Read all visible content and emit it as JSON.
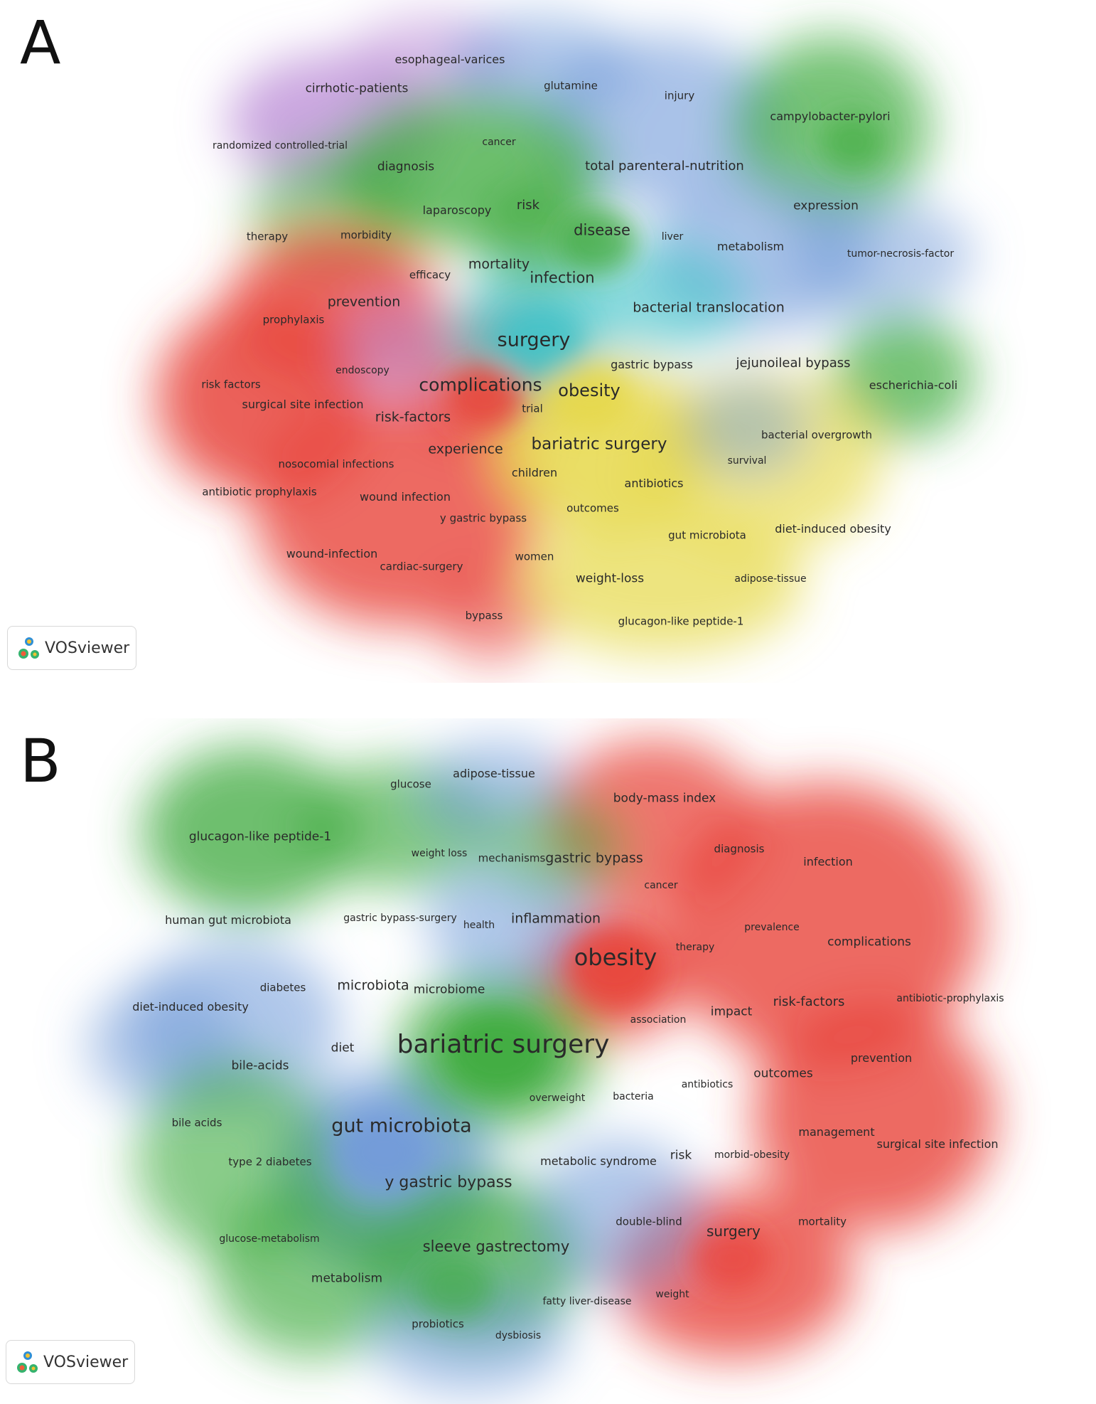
{
  "panels": [
    {
      "label": "A",
      "badge_text": "VOSviewer",
      "clusters": [
        {
          "color": "#e8453c",
          "name": ""
        },
        {
          "color": "#3daa3d",
          "name": ""
        },
        {
          "color": "#6f99d8",
          "name": ""
        },
        {
          "color": "#e6d84a",
          "name": ""
        },
        {
          "color": "#b98ad6",
          "name": ""
        },
        {
          "color": "#3fc3c8",
          "name": ""
        }
      ],
      "terms": [
        {
          "label": "esophageal-varices",
          "cluster": 4
        },
        {
          "label": "glutamine",
          "cluster": 2
        },
        {
          "label": "cirrhotic-patients",
          "cluster": 4
        },
        {
          "label": "injury",
          "cluster": 2
        },
        {
          "label": "campylobacter-pylori",
          "cluster": 1
        },
        {
          "label": "randomized controlled-trial",
          "cluster": 4
        },
        {
          "label": "cancer",
          "cluster": 1
        },
        {
          "label": "diagnosis",
          "cluster": 1
        },
        {
          "label": "total parenteral-nutrition",
          "cluster": 2
        },
        {
          "label": "expression",
          "cluster": 1
        },
        {
          "label": "laparoscopy",
          "cluster": 5
        },
        {
          "label": "risk",
          "cluster": 1
        },
        {
          "label": "therapy",
          "cluster": 1
        },
        {
          "label": "morbidity",
          "cluster": 0
        },
        {
          "label": "disease",
          "cluster": 1
        },
        {
          "label": "liver",
          "cluster": 2
        },
        {
          "label": "metabolism",
          "cluster": 2
        },
        {
          "label": "tumor-necrosis-factor",
          "cluster": 2
        },
        {
          "label": "mortality",
          "cluster": 0
        },
        {
          "label": "efficacy",
          "cluster": 0
        },
        {
          "label": "infection",
          "cluster": 1
        },
        {
          "label": "prevention",
          "cluster": 0
        },
        {
          "label": "bacterial translocation",
          "cluster": 5
        },
        {
          "label": "prophylaxis",
          "cluster": 0
        },
        {
          "label": "surgery",
          "cluster": 5
        },
        {
          "label": "gastric bypass",
          "cluster": 3
        },
        {
          "label": "jejunoileal bypass",
          "cluster": 2
        },
        {
          "label": "endoscopy",
          "cluster": 4
        },
        {
          "label": "escherichia-coli",
          "cluster": 1
        },
        {
          "label": "risk factors",
          "cluster": 0
        },
        {
          "label": "complications",
          "cluster": 0
        },
        {
          "label": "obesity",
          "cluster": 3
        },
        {
          "label": "surgical site infection",
          "cluster": 0
        },
        {
          "label": "trial",
          "cluster": 0
        },
        {
          "label": "risk-factors",
          "cluster": 0
        },
        {
          "label": "bariatric surgery",
          "cluster": 3
        },
        {
          "label": "bacterial overgrowth",
          "cluster": 3
        },
        {
          "label": "experience",
          "cluster": 5
        },
        {
          "label": "survival",
          "cluster": 2
        },
        {
          "label": "nosocomial infections",
          "cluster": 0
        },
        {
          "label": "children",
          "cluster": 1
        },
        {
          "label": "antibiotics",
          "cluster": 3
        },
        {
          "label": "antibiotic prophylaxis",
          "cluster": 0
        },
        {
          "label": "wound infection",
          "cluster": 0
        },
        {
          "label": "outcomes",
          "cluster": 5
        },
        {
          "label": "y gastric bypass",
          "cluster": 3
        },
        {
          "label": "gut microbiota",
          "cluster": 3
        },
        {
          "label": "diet-induced obesity",
          "cluster": 3
        },
        {
          "label": "wound-infection",
          "cluster": 0
        },
        {
          "label": "cardiac-surgery",
          "cluster": 0
        },
        {
          "label": "women",
          "cluster": 0
        },
        {
          "label": "weight-loss",
          "cluster": 3
        },
        {
          "label": "adipose-tissue",
          "cluster": 3
        },
        {
          "label": "bypass",
          "cluster": 0
        },
        {
          "label": "glucagon-like peptide-1",
          "cluster": 3
        }
      ]
    },
    {
      "label": "B",
      "badge_text": "VOSviewer",
      "clusters": [
        {
          "color": "#e8453c",
          "name": ""
        },
        {
          "color": "#3daa3d",
          "name": ""
        },
        {
          "color": "#6f99d8",
          "name": ""
        }
      ],
      "terms": [
        {
          "label": "adipose-tissue",
          "cluster": 2
        },
        {
          "label": "glucose",
          "cluster": 1
        },
        {
          "label": "body-mass index",
          "cluster": 0
        },
        {
          "label": "glucagon-like peptide-1",
          "cluster": 1
        },
        {
          "label": "weight loss",
          "cluster": 1
        },
        {
          "label": "mechanisms",
          "cluster": 1
        },
        {
          "label": "gastric bypass",
          "cluster": 1
        },
        {
          "label": "diagnosis",
          "cluster": 0
        },
        {
          "label": "infection",
          "cluster": 0
        },
        {
          "label": "cancer",
          "cluster": 0
        },
        {
          "label": "human gut microbiota",
          "cluster": 1
        },
        {
          "label": "gastric bypass-surgery",
          "cluster": 2
        },
        {
          "label": "health",
          "cluster": 2
        },
        {
          "label": "inflammation",
          "cluster": 2
        },
        {
          "label": "prevalence",
          "cluster": 0
        },
        {
          "label": "complications",
          "cluster": 0
        },
        {
          "label": "therapy",
          "cluster": 0
        },
        {
          "label": "obesity",
          "cluster": 0
        },
        {
          "label": "diabetes",
          "cluster": 1
        },
        {
          "label": "microbiota",
          "cluster": 2
        },
        {
          "label": "microbiome",
          "cluster": 2
        },
        {
          "label": "antibiotic-prophylaxis",
          "cluster": 0
        },
        {
          "label": "risk-factors",
          "cluster": 0
        },
        {
          "label": "diet-induced obesity",
          "cluster": 2
        },
        {
          "label": "impact",
          "cluster": 0
        },
        {
          "label": "association",
          "cluster": 0
        },
        {
          "label": "bariatric surgery",
          "cluster": 1
        },
        {
          "label": "diet",
          "cluster": 2
        },
        {
          "label": "prevention",
          "cluster": 0
        },
        {
          "label": "bile-acids",
          "cluster": 1
        },
        {
          "label": "outcomes",
          "cluster": 0
        },
        {
          "label": "antibiotics",
          "cluster": 0
        },
        {
          "label": "overweight",
          "cluster": 1
        },
        {
          "label": "bacteria",
          "cluster": 2
        },
        {
          "label": "bile acids",
          "cluster": 1
        },
        {
          "label": "gut microbiota",
          "cluster": 2
        },
        {
          "label": "management",
          "cluster": 0
        },
        {
          "label": "surgical site infection",
          "cluster": 0
        },
        {
          "label": "risk",
          "cluster": 0
        },
        {
          "label": "morbid-obesity",
          "cluster": 0
        },
        {
          "label": "type 2 diabetes",
          "cluster": 1
        },
        {
          "label": "metabolic syndrome",
          "cluster": 2
        },
        {
          "label": "y gastric bypass",
          "cluster": 1
        },
        {
          "label": "double-blind",
          "cluster": 2
        },
        {
          "label": "surgery",
          "cluster": 0
        },
        {
          "label": "mortality",
          "cluster": 0
        },
        {
          "label": "glucose-metabolism",
          "cluster": 1
        },
        {
          "label": "sleeve gastrectomy",
          "cluster": 1
        },
        {
          "label": "metabolism",
          "cluster": 1
        },
        {
          "label": "weight",
          "cluster": 0
        },
        {
          "label": "fatty liver-disease",
          "cluster": 2
        },
        {
          "label": "probiotics",
          "cluster": 2
        },
        {
          "label": "dysbiosis",
          "cluster": 2
        }
      ]
    }
  ]
}
